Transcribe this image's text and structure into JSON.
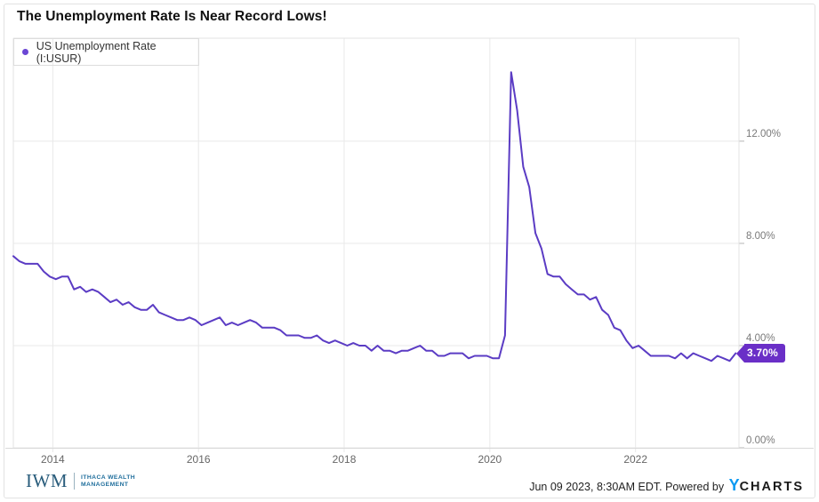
{
  "title": "The Unemployment Rate Is Near Record Lows!",
  "legend": {
    "label": "US Unemployment Rate (I:USUR)"
  },
  "colors": {
    "line": "#5b3cc4",
    "legend_dot": "#6b46d4",
    "badge_bg": "#6a2fc7",
    "ycharts_blue": "#0d9af2"
  },
  "footer": {
    "brand_initials": "IWM",
    "brand_line1": "ITHACA WEALTH",
    "brand_line2": "MANAGEMENT",
    "attribution_text": "Jun 09 2023, 8:30AM EDT. Powered by ",
    "ycharts_y": "Y",
    "ycharts_charts": "CHARTS"
  },
  "chart_data": {
    "type": "line",
    "title": "The Unemployment Rate Is Near Record Lows!",
    "grid": true,
    "legend_position": "top-left",
    "x_domain": [
      2013.458,
      2023.42
    ],
    "y_domain": [
      0,
      16.03
    ],
    "x_ticks": [
      {
        "value": 2014,
        "label": "2014"
      },
      {
        "value": 2016,
        "label": "2016"
      },
      {
        "value": 2018,
        "label": "2018"
      },
      {
        "value": 2020,
        "label": "2020"
      },
      {
        "value": 2022,
        "label": "2022"
      }
    ],
    "y_ticks": [
      {
        "value": 0,
        "label": "0.00%"
      },
      {
        "value": 4,
        "label": "4.00%"
      },
      {
        "value": 8,
        "label": "8.00%"
      },
      {
        "value": 12,
        "label": "12.00%"
      }
    ],
    "unit": "%",
    "last_value": 3.7,
    "last_value_label": "3.70%",
    "series": [
      {
        "name": "US Unemployment Rate (I:USUR)",
        "color": "#5b3cc4",
        "start": "2013-06",
        "frequency": "monthly",
        "values": [
          7.5,
          7.3,
          7.2,
          7.2,
          7.2,
          6.9,
          6.7,
          6.6,
          6.7,
          6.7,
          6.2,
          6.3,
          6.1,
          6.2,
          6.1,
          5.9,
          5.7,
          5.8,
          5.6,
          5.7,
          5.5,
          5.4,
          5.4,
          5.6,
          5.3,
          5.2,
          5.1,
          5.0,
          5.0,
          5.1,
          5.0,
          4.8,
          4.9,
          5.0,
          5.1,
          4.8,
          4.9,
          4.8,
          4.9,
          5.0,
          4.9,
          4.7,
          4.7,
          4.7,
          4.6,
          4.4,
          4.4,
          4.4,
          4.3,
          4.3,
          4.4,
          4.2,
          4.1,
          4.2,
          4.1,
          4.0,
          4.1,
          4.0,
          4.0,
          3.8,
          4.0,
          3.8,
          3.8,
          3.7,
          3.8,
          3.8,
          3.9,
          4.0,
          3.8,
          3.8,
          3.6,
          3.6,
          3.7,
          3.7,
          3.7,
          3.5,
          3.6,
          3.6,
          3.6,
          3.5,
          3.5,
          4.4,
          14.7,
          13.2,
          11.0,
          10.2,
          8.4,
          7.8,
          6.8,
          6.7,
          6.7,
          6.4,
          6.2,
          6.0,
          6.0,
          5.8,
          5.9,
          5.4,
          5.2,
          4.7,
          4.6,
          4.2,
          3.9,
          4.0,
          3.8,
          3.6,
          3.6,
          3.6,
          3.6,
          3.5,
          3.7,
          3.5,
          3.7,
          3.6,
          3.5,
          3.4,
          3.6,
          3.5,
          3.4,
          3.7
        ]
      }
    ]
  }
}
